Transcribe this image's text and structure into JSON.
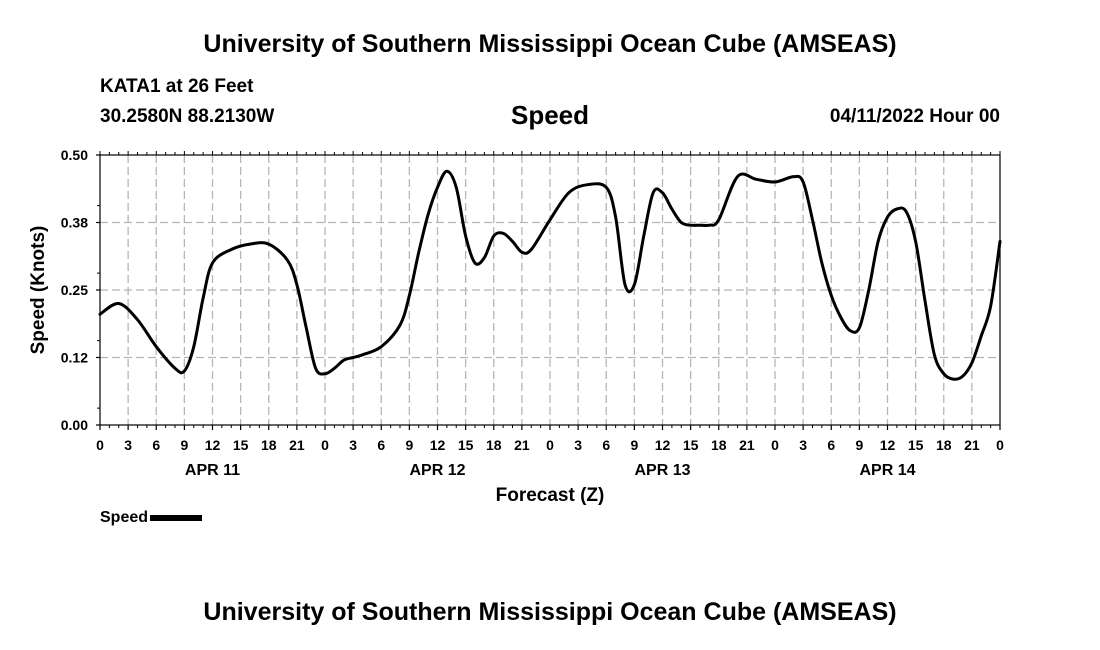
{
  "header": {
    "title": "University of Southern Mississippi Ocean Cube (AMSEAS)",
    "station": "KATA1 at 26 Feet",
    "coords": "30.2580N  88.2130W",
    "variable": "Speed",
    "datetime": "04/11/2022 Hour 00"
  },
  "footer": {
    "title": "University of Southern Mississippi Ocean Cube (AMSEAS)"
  },
  "legend": {
    "label": "Speed"
  },
  "chart_data": {
    "type": "line",
    "title": "Speed",
    "xlabel": "Forecast (Z)",
    "ylabel": "Speed (Knots)",
    "xlim": [
      0,
      96
    ],
    "ylim": [
      0,
      0.5
    ],
    "grid": true,
    "y_ticks": [
      "0.00",
      "0.12",
      "0.25",
      "0.38",
      "0.50"
    ],
    "y_tick_values": [
      0,
      0.125,
      0.25,
      0.375,
      0.5
    ],
    "x_tick_labels": [
      "0",
      "3",
      "6",
      "9",
      "12",
      "15",
      "18",
      "21",
      "0",
      "3",
      "6",
      "9",
      "12",
      "15",
      "18",
      "21",
      "0",
      "3",
      "6",
      "9",
      "12",
      "15",
      "18",
      "21",
      "0",
      "3",
      "6",
      "9",
      "12",
      "15",
      "18",
      "21",
      "0"
    ],
    "day_labels": [
      {
        "label": "APR 11",
        "hour": 12
      },
      {
        "label": "APR 12",
        "hour": 36
      },
      {
        "label": "APR 13",
        "hour": 60
      },
      {
        "label": "APR 14",
        "hour": 84
      }
    ],
    "series": [
      {
        "name": "Speed",
        "color": "#000000",
        "x": [
          0,
          2,
          4,
          6,
          8,
          9,
          10,
          11,
          12,
          14,
          16,
          18,
          20,
          21,
          22,
          23,
          24,
          25,
          26,
          27,
          28,
          30,
          32,
          33,
          34,
          35,
          36,
          37,
          38,
          39,
          40,
          41,
          42,
          43,
          44,
          45,
          46,
          48,
          50,
          52,
          54,
          55,
          56,
          57,
          58,
          59,
          60,
          61,
          62,
          63,
          64,
          65,
          66,
          68,
          70,
          72,
          74,
          75,
          76,
          77,
          78,
          79,
          80,
          81,
          82,
          83,
          84,
          85,
          86,
          87,
          88,
          89,
          90,
          91,
          92,
          93,
          94,
          95,
          96
        ],
        "y": [
          0.205,
          0.225,
          0.195,
          0.145,
          0.105,
          0.1,
          0.145,
          0.235,
          0.3,
          0.325,
          0.335,
          0.335,
          0.305,
          0.26,
          0.18,
          0.105,
          0.095,
          0.105,
          0.12,
          0.125,
          0.13,
          0.145,
          0.185,
          0.24,
          0.32,
          0.39,
          0.44,
          0.47,
          0.44,
          0.35,
          0.3,
          0.31,
          0.35,
          0.355,
          0.34,
          0.32,
          0.325,
          0.38,
          0.43,
          0.445,
          0.44,
          0.385,
          0.26,
          0.26,
          0.35,
          0.43,
          0.43,
          0.4,
          0.375,
          0.37,
          0.37,
          0.37,
          0.38,
          0.46,
          0.455,
          0.45,
          0.46,
          0.45,
          0.38,
          0.3,
          0.24,
          0.2,
          0.175,
          0.18,
          0.25,
          0.34,
          0.385,
          0.4,
          0.395,
          0.34,
          0.23,
          0.13,
          0.095,
          0.085,
          0.09,
          0.115,
          0.165,
          0.22,
          0.34
        ]
      }
    ]
  }
}
